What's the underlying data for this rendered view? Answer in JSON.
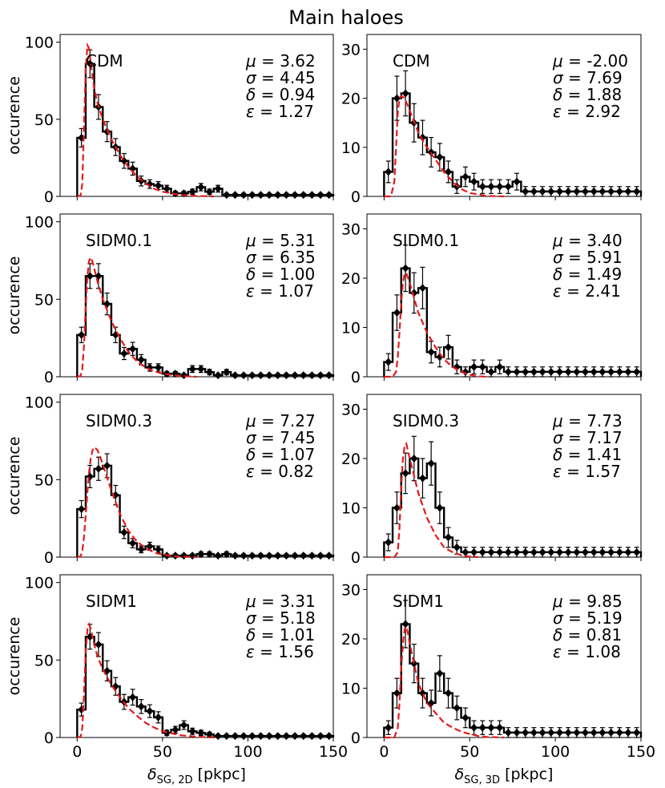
{
  "title": "Main haloes",
  "ylabel": "occurence",
  "xlabels": [
    "δSG, 2D [pkpc]",
    "δSG, 3D [pkpc]"
  ],
  "xlabel_parts": [
    {
      "sym": "δ",
      "sub": "SG, 2D",
      "unit": " [pkpc]"
    },
    {
      "sym": "δ",
      "sub": "SG, 3D",
      "unit": " [pkpc]"
    }
  ],
  "colors": {
    "histogram": "#000000",
    "fit": "#e41a1c",
    "points": "#000000"
  },
  "chart_data": [
    {
      "id": "cdm-2d",
      "model": "CDM",
      "type": "bar",
      "xlim": [
        -10,
        150
      ],
      "ylim": [
        0,
        105
      ],
      "xticks": [
        0,
        50,
        100,
        150
      ],
      "yticks": [
        0,
        50,
        100
      ],
      "params": {
        "mu": "3.62",
        "sigma": "4.45",
        "delta": "0.94",
        "epsilon": "1.27"
      },
      "bin_width": 5,
      "bin_start": 0,
      "values": [
        38,
        86,
        58,
        42,
        32,
        23,
        18,
        10,
        8,
        7,
        5,
        2,
        2,
        3,
        6,
        3,
        5,
        1,
        1,
        1,
        1,
        1,
        1,
        1,
        1,
        1,
        1,
        1,
        1,
        1
      ],
      "errors": [
        6,
        9,
        8,
        6.5,
        5.5,
        4.8,
        4.2,
        3.2,
        2.8,
        2.6,
        2.2,
        1.4,
        1.4,
        1.7,
        2.4,
        1.7,
        2.2,
        1,
        1,
        1,
        1,
        1,
        1,
        1,
        1,
        1,
        1,
        1,
        1,
        1
      ],
      "fit": [
        [
          0,
          0
        ],
        [
          2,
          0.5
        ],
        [
          3,
          8
        ],
        [
          4,
          45
        ],
        [
          5,
          82
        ],
        [
          6,
          98
        ],
        [
          7,
          96
        ],
        [
          8,
          86
        ],
        [
          10,
          70
        ],
        [
          12,
          60
        ],
        [
          15,
          50
        ],
        [
          20,
          37
        ],
        [
          25,
          27
        ],
        [
          30,
          19
        ],
        [
          35,
          13
        ],
        [
          40,
          8.5
        ],
        [
          45,
          5
        ],
        [
          50,
          3
        ],
        [
          60,
          1
        ],
        [
          70,
          0.3
        ],
        [
          80,
          0
        ]
      ]
    },
    {
      "id": "cdm-3d",
      "model": "CDM",
      "type": "bar",
      "xlim": [
        -10,
        150
      ],
      "ylim": [
        0,
        33
      ],
      "xticks": [
        0,
        50,
        100,
        150
      ],
      "yticks": [
        0,
        10,
        20,
        30
      ],
      "params": {
        "mu": "-2.00",
        "sigma": "7.69",
        "delta": "1.88",
        "epsilon": "2.92"
      },
      "bin_width": 5,
      "bin_start": 0,
      "values": [
        5,
        20,
        21,
        15,
        12,
        9,
        8,
        5,
        2,
        4,
        3,
        2,
        2,
        2,
        2,
        3,
        1,
        1,
        1,
        1,
        1,
        1,
        1,
        1,
        1,
        1,
        1,
        1,
        1,
        1
      ],
      "errors": [
        2.2,
        4.5,
        4.6,
        3.9,
        3.5,
        3,
        2.8,
        2.2,
        1.4,
        2,
        1.7,
        1.4,
        1.4,
        1.4,
        1.4,
        1.7,
        1,
        1,
        1,
        1,
        1,
        1,
        1,
        1,
        1,
        1,
        1,
        1,
        1,
        1
      ],
      "fit": [
        [
          0,
          0
        ],
        [
          4,
          0
        ],
        [
          6,
          3
        ],
        [
          7,
          10
        ],
        [
          8,
          17
        ],
        [
          9,
          20
        ],
        [
          10,
          20.5
        ],
        [
          12,
          20
        ],
        [
          15,
          17.5
        ],
        [
          20,
          13
        ],
        [
          25,
          10
        ],
        [
          30,
          7.5
        ],
        [
          35,
          5
        ],
        [
          40,
          3
        ],
        [
          45,
          1.5
        ],
        [
          50,
          0.7
        ],
        [
          60,
          0.1
        ],
        [
          70,
          0
        ]
      ]
    },
    {
      "id": "sidm01-2d",
      "model": "SIDM0.1",
      "type": "bar",
      "xlim": [
        -10,
        150
      ],
      "ylim": [
        0,
        105
      ],
      "xticks": [
        0,
        50,
        100,
        150
      ],
      "yticks": [
        0,
        50,
        100
      ],
      "params": {
        "mu": "5.31",
        "sigma": "6.35",
        "delta": "1.00",
        "epsilon": "1.07"
      },
      "bin_width": 5,
      "bin_start": 0,
      "values": [
        27,
        65,
        65,
        47,
        27,
        15,
        18,
        11,
        6,
        6,
        2,
        2,
        1,
        5,
        5,
        3,
        1,
        3,
        1,
        1,
        1,
        1,
        1,
        1,
        1,
        1,
        1,
        1,
        1,
        1
      ],
      "errors": [
        5,
        8,
        8,
        7,
        5,
        3.9,
        4.2,
        3.3,
        2.4,
        2.4,
        1.4,
        1.4,
        1,
        2.2,
        2.2,
        1.7,
        1,
        1.7,
        1,
        1,
        1,
        1,
        1,
        1,
        1,
        1,
        1,
        1,
        1,
        1
      ],
      "fit": [
        [
          0,
          0
        ],
        [
          2,
          0.5
        ],
        [
          3,
          5
        ],
        [
          4,
          20
        ],
        [
          5,
          45
        ],
        [
          6,
          65
        ],
        [
          7,
          75
        ],
        [
          8,
          77
        ],
        [
          9,
          74
        ],
        [
          10,
          70
        ],
        [
          12,
          61
        ],
        [
          15,
          50
        ],
        [
          20,
          36
        ],
        [
          25,
          25
        ],
        [
          30,
          16
        ],
        [
          35,
          10
        ],
        [
          40,
          6
        ],
        [
          45,
          3.5
        ],
        [
          50,
          2
        ],
        [
          60,
          0.5
        ],
        [
          70,
          0
        ]
      ]
    },
    {
      "id": "sidm01-3d",
      "model": "SIDM0.1",
      "type": "bar",
      "xlim": [
        -10,
        150
      ],
      "ylim": [
        0,
        33
      ],
      "xticks": [
        0,
        50,
        100,
        150
      ],
      "yticks": [
        0,
        10,
        20,
        30
      ],
      "params": {
        "mu": "3.40",
        "sigma": "5.91",
        "delta": "1.49",
        "epsilon": "2.41"
      },
      "bin_width": 5,
      "bin_start": 0,
      "values": [
        3,
        13,
        22,
        17,
        18,
        5,
        4,
        6,
        2,
        1,
        2,
        2,
        1,
        2,
        1,
        1,
        1,
        1,
        1,
        1,
        1,
        1,
        1,
        1,
        1,
        1,
        1,
        1,
        1,
        1
      ],
      "errors": [
        1.7,
        3.6,
        4.7,
        4.1,
        4.2,
        2.2,
        2,
        2.4,
        1.4,
        1,
        1.4,
        1.4,
        1,
        1.4,
        1,
        1,
        1,
        1,
        1,
        1,
        1,
        1,
        1,
        1,
        1,
        1,
        1,
        1,
        1,
        1
      ],
      "fit": [
        [
          0,
          0
        ],
        [
          5,
          0
        ],
        [
          7,
          1
        ],
        [
          8,
          4
        ],
        [
          9,
          9
        ],
        [
          10,
          15
        ],
        [
          11,
          19
        ],
        [
          12,
          21
        ],
        [
          13,
          21
        ],
        [
          15,
          19
        ],
        [
          20,
          13
        ],
        [
          25,
          9
        ],
        [
          30,
          6
        ],
        [
          35,
          3.5
        ],
        [
          40,
          2
        ],
        [
          45,
          1
        ],
        [
          50,
          0.4
        ],
        [
          55,
          0.1
        ],
        [
          60,
          0
        ]
      ]
    },
    {
      "id": "sidm03-2d",
      "model": "SIDM0.3",
      "type": "bar",
      "xlim": [
        -10,
        150
      ],
      "ylim": [
        0,
        105
      ],
      "xticks": [
        0,
        50,
        100,
        150
      ],
      "yticks": [
        0,
        50,
        100
      ],
      "params": {
        "mu": "7.27",
        "sigma": "7.45",
        "delta": "1.07",
        "epsilon": "0.82"
      },
      "bin_width": 5,
      "bin_start": 0,
      "values": [
        31,
        52,
        57,
        59,
        40,
        16,
        9,
        5,
        7,
        5,
        1,
        1,
        1,
        1,
        2,
        2,
        1,
        2,
        1,
        1,
        1,
        1,
        1,
        1,
        1,
        1,
        1,
        1,
        1,
        1
      ],
      "errors": [
        5.5,
        7.2,
        7.5,
        7.7,
        6.3,
        4,
        3,
        2.2,
        2.6,
        2.2,
        1,
        1,
        1,
        1,
        1.4,
        1.4,
        1,
        1.4,
        1,
        1,
        1,
        1,
        1,
        1,
        1,
        1,
        1,
        1,
        1,
        1
      ],
      "fit": [
        [
          0,
          0
        ],
        [
          2,
          0.5
        ],
        [
          3,
          4
        ],
        [
          4,
          13
        ],
        [
          5,
          27
        ],
        [
          6,
          42
        ],
        [
          7,
          55
        ],
        [
          8,
          64
        ],
        [
          9,
          69
        ],
        [
          10,
          71
        ],
        [
          12,
          69
        ],
        [
          15,
          60
        ],
        [
          20,
          43
        ],
        [
          25,
          28
        ],
        [
          30,
          17
        ],
        [
          35,
          10
        ],
        [
          40,
          6
        ],
        [
          45,
          3
        ],
        [
          50,
          1.5
        ],
        [
          60,
          0.3
        ],
        [
          70,
          0
        ]
      ]
    },
    {
      "id": "sidm03-3d",
      "model": "SIDM0.3",
      "type": "bar",
      "xlim": [
        -10,
        150
      ],
      "ylim": [
        0,
        33
      ],
      "xticks": [
        0,
        50,
        100,
        150
      ],
      "yticks": [
        0,
        10,
        20,
        30
      ],
      "params": {
        "mu": "7.73",
        "sigma": "7.17",
        "delta": "1.41",
        "epsilon": "1.57"
      },
      "bin_width": 5,
      "bin_start": 0,
      "values": [
        3,
        10,
        17,
        20,
        16,
        19,
        10,
        4,
        2,
        1,
        1,
        1,
        1,
        1,
        1,
        1,
        1,
        1,
        1,
        1,
        1,
        1,
        1,
        1,
        1,
        1,
        1,
        1,
        1,
        1
      ],
      "errors": [
        1.7,
        3.2,
        4.1,
        4.5,
        4,
        4.4,
        3.2,
        2,
        1.4,
        1,
        1,
        1,
        1,
        1,
        1,
        1,
        1,
        1,
        1,
        1,
        1,
        1,
        1,
        1,
        1,
        1,
        1,
        1,
        1,
        1
      ],
      "fit": [
        [
          0,
          0
        ],
        [
          6,
          0
        ],
        [
          8,
          1
        ],
        [
          9,
          6
        ],
        [
          10,
          14
        ],
        [
          11,
          20
        ],
        [
          12,
          22.5
        ],
        [
          13,
          23
        ],
        [
          14,
          21.5
        ],
        [
          15,
          20
        ],
        [
          20,
          13
        ],
        [
          25,
          8
        ],
        [
          30,
          4.5
        ],
        [
          35,
          2
        ],
        [
          40,
          1
        ],
        [
          45,
          0.4
        ],
        [
          50,
          0.1
        ],
        [
          55,
          0
        ]
      ]
    },
    {
      "id": "sidm1-2d",
      "model": "SIDM1",
      "type": "bar",
      "xlim": [
        -10,
        150
      ],
      "ylim": [
        0,
        105
      ],
      "xticks": [
        0,
        50,
        100,
        150
      ],
      "yticks": [
        0,
        50,
        100
      ],
      "params": {
        "mu": "3.31",
        "sigma": "5.18",
        "delta": "1.01",
        "epsilon": "1.56"
      },
      "bin_width": 5,
      "bin_start": 0,
      "values": [
        18,
        65,
        60,
        43,
        33,
        23,
        26,
        20,
        17,
        13,
        3,
        5,
        8,
        4,
        3,
        2,
        1,
        1,
        1,
        1,
        1,
        1,
        1,
        1,
        1,
        1,
        1,
        1,
        1,
        1
      ],
      "errors": [
        4.2,
        8,
        7.7,
        6.5,
        5.7,
        4.8,
        5.1,
        4.5,
        4.1,
        3.6,
        1.7,
        2.2,
        2.8,
        2,
        1.7,
        1.4,
        1,
        1,
        1,
        1,
        1,
        1,
        1,
        1,
        1,
        1,
        1,
        1,
        1,
        1
      ],
      "fit": [
        [
          0,
          0
        ],
        [
          2,
          0.5
        ],
        [
          3,
          6
        ],
        [
          4,
          28
        ],
        [
          5,
          55
        ],
        [
          6,
          70
        ],
        [
          7,
          73
        ],
        [
          8,
          70
        ],
        [
          10,
          60
        ],
        [
          12,
          52
        ],
        [
          15,
          44
        ],
        [
          20,
          34
        ],
        [
          25,
          26
        ],
        [
          30,
          19
        ],
        [
          35,
          14
        ],
        [
          40,
          9.5
        ],
        [
          45,
          6.5
        ],
        [
          50,
          4
        ],
        [
          60,
          1.5
        ],
        [
          70,
          0.5
        ],
        [
          80,
          0
        ]
      ]
    },
    {
      "id": "sidm1-3d",
      "model": "SIDM1",
      "type": "bar",
      "xlim": [
        -10,
        150
      ],
      "ylim": [
        0,
        33
      ],
      "xticks": [
        0,
        50,
        100,
        150
      ],
      "yticks": [
        0,
        10,
        20,
        30
      ],
      "params": {
        "mu": "9.85",
        "sigma": "5.19",
        "delta": "0.81",
        "epsilon": "1.08"
      },
      "bin_width": 5,
      "bin_start": 0,
      "values": [
        2,
        9,
        23,
        15,
        9,
        7,
        13,
        9,
        6,
        4,
        2,
        2,
        2,
        2,
        1,
        1,
        1,
        1,
        1,
        1,
        1,
        1,
        1,
        1,
        1,
        1,
        1,
        1,
        1,
        1
      ],
      "errors": [
        1.4,
        3,
        4.8,
        3.9,
        3,
        2.6,
        3.6,
        3,
        2.4,
        2,
        1.4,
        1.4,
        1.4,
        1.4,
        1,
        1,
        1,
        1,
        1,
        1,
        1,
        1,
        1,
        1,
        1,
        1,
        1,
        1,
        1,
        1
      ],
      "fit": [
        [
          0,
          0
        ],
        [
          6,
          0
        ],
        [
          8,
          2
        ],
        [
          9,
          7
        ],
        [
          10,
          14
        ],
        [
          11,
          19
        ],
        [
          12,
          22
        ],
        [
          13,
          22.5
        ],
        [
          14,
          21
        ],
        [
          15,
          19
        ],
        [
          20,
          11
        ],
        [
          25,
          7
        ],
        [
          30,
          5
        ],
        [
          35,
          3
        ],
        [
          40,
          2
        ],
        [
          45,
          1.2
        ],
        [
          50,
          0.7
        ],
        [
          55,
          0.3
        ],
        [
          60,
          0.1
        ],
        [
          70,
          0
        ]
      ]
    }
  ]
}
